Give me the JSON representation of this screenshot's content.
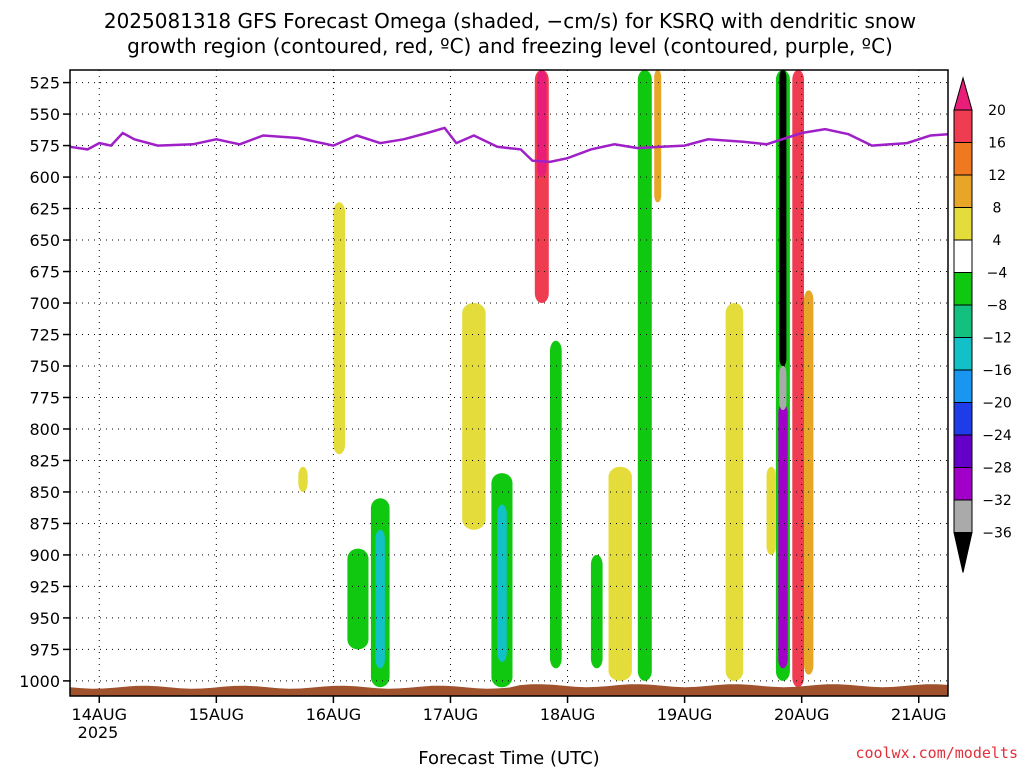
{
  "chart_data": {
    "type": "heatmap",
    "title_line1": "2025081318 GFS Forecast Omega (shaded, −cm/s) for KSRQ with dendritic snow",
    "title_line2": "growth region (contoured, red, ºC) and freezing level (contoured, purple, ºC)",
    "xlabel": "Forecast Time (UTC)",
    "x_ticks": [
      "14AUG",
      "15AUG",
      "16AUG",
      "17AUG",
      "18AUG",
      "19AUG",
      "20AUG",
      "21AUG"
    ],
    "x_year": "2025",
    "x_range_days": [
      -0.25,
      7.25
    ],
    "y_ticks": [
      525,
      550,
      575,
      600,
      625,
      650,
      675,
      700,
      725,
      750,
      775,
      800,
      825,
      850,
      875,
      900,
      925,
      950,
      975,
      1000
    ],
    "y_range_hpa": [
      515,
      1012
    ],
    "grid": true,
    "colorbar_labels": [
      "20",
      "16",
      "12",
      "8",
      "4",
      "−4",
      "−8",
      "−12",
      "−16",
      "−20",
      "−24",
      "−28",
      "−32",
      "−36"
    ],
    "colors": {
      "pos16_20": "#f03c50",
      "pos12_16": "#f07820",
      "pos8_12": "#e8a628",
      "pos4_8": "#e4dc3a",
      "neutral": "#ffffff",
      "neg4_8": "#11c811",
      "neg8_12": "#12c080",
      "neg12_16": "#12c0c8",
      "neg16_20": "#1896f0",
      "neg20_24": "#1e3ce8",
      "neg24_28": "#6400c8",
      "neg28_32": "#a000c8",
      "neg32_36": "#aaaaaa",
      "extreme_pos": "#e81e78",
      "extreme_neg": "#000000",
      "freezing_level": "#a020c8",
      "terrain": "#a0522d"
    },
    "freezing_level_hpa": [
      {
        "t": -0.25,
        "p": 576
      },
      {
        "t": -0.1,
        "p": 578
      },
      {
        "t": 0.0,
        "p": 573
      },
      {
        "t": 0.1,
        "p": 575
      },
      {
        "t": 0.2,
        "p": 565
      },
      {
        "t": 0.3,
        "p": 570
      },
      {
        "t": 0.5,
        "p": 575
      },
      {
        "t": 0.8,
        "p": 574
      },
      {
        "t": 1.0,
        "p": 570
      },
      {
        "t": 1.2,
        "p": 574
      },
      {
        "t": 1.4,
        "p": 567
      },
      {
        "t": 1.7,
        "p": 569
      },
      {
        "t": 2.0,
        "p": 575
      },
      {
        "t": 2.2,
        "p": 567
      },
      {
        "t": 2.4,
        "p": 573
      },
      {
        "t": 2.6,
        "p": 570
      },
      {
        "t": 2.8,
        "p": 565
      },
      {
        "t": 2.95,
        "p": 561
      },
      {
        "t": 3.05,
        "p": 573
      },
      {
        "t": 3.2,
        "p": 567
      },
      {
        "t": 3.4,
        "p": 576
      },
      {
        "t": 3.6,
        "p": 578
      },
      {
        "t": 3.7,
        "p": 587
      },
      {
        "t": 3.85,
        "p": 588
      },
      {
        "t": 4.0,
        "p": 585
      },
      {
        "t": 4.2,
        "p": 578
      },
      {
        "t": 4.4,
        "p": 574
      },
      {
        "t": 4.6,
        "p": 577
      },
      {
        "t": 4.8,
        "p": 576
      },
      {
        "t": 5.0,
        "p": 575
      },
      {
        "t": 5.2,
        "p": 570
      },
      {
        "t": 5.5,
        "p": 572
      },
      {
        "t": 5.7,
        "p": 574
      },
      {
        "t": 6.0,
        "p": 565
      },
      {
        "t": 6.2,
        "p": 562
      },
      {
        "t": 6.4,
        "p": 566
      },
      {
        "t": 6.6,
        "p": 575
      },
      {
        "t": 6.9,
        "p": 573
      },
      {
        "t": 7.1,
        "p": 567
      },
      {
        "t": 7.25,
        "p": 566
      }
    ],
    "omega_regions": [
      {
        "t0": 2.32,
        "t1": 2.48,
        "p0": 855,
        "p1": 1005,
        "c": "neg4_8"
      },
      {
        "t0": 2.36,
        "t1": 2.44,
        "p0": 880,
        "p1": 990,
        "c": "neg12_16"
      },
      {
        "t0": 2.12,
        "t1": 2.3,
        "p0": 895,
        "p1": 975,
        "c": "neg4_8"
      },
      {
        "t0": 3.35,
        "t1": 3.53,
        "p0": 835,
        "p1": 1005,
        "c": "neg4_8"
      },
      {
        "t0": 3.4,
        "t1": 3.48,
        "p0": 860,
        "p1": 985,
        "c": "neg12_16"
      },
      {
        "t0": 3.1,
        "t1": 3.3,
        "p0": 700,
        "p1": 880,
        "c": "pos4_8"
      },
      {
        "t0": 3.85,
        "t1": 3.95,
        "p0": 730,
        "p1": 990,
        "c": "neg4_8"
      },
      {
        "t0": 4.2,
        "t1": 4.3,
        "p0": 900,
        "p1": 990,
        "c": "neg4_8"
      },
      {
        "t0": 4.35,
        "t1": 4.55,
        "p0": 830,
        "p1": 1000,
        "c": "pos4_8"
      },
      {
        "t0": 4.6,
        "t1": 4.72,
        "p0": 515,
        "p1": 1000,
        "c": "neg4_8"
      },
      {
        "t0": 3.72,
        "t1": 3.84,
        "p0": 515,
        "p1": 700,
        "c": "pos16_20"
      },
      {
        "t0": 3.74,
        "t1": 3.82,
        "p0": 515,
        "p1": 600,
        "c": "extreme_pos"
      },
      {
        "t0": 4.74,
        "t1": 4.8,
        "p0": 515,
        "p1": 620,
        "c": "pos8_12"
      },
      {
        "t0": 5.35,
        "t1": 5.5,
        "p0": 700,
        "p1": 1000,
        "c": "pos4_8"
      },
      {
        "t0": 5.78,
        "t1": 5.9,
        "p0": 515,
        "p1": 1000,
        "c": "neg4_8"
      },
      {
        "t0": 5.8,
        "t1": 5.88,
        "p0": 780,
        "p1": 990,
        "c": "neg28_32"
      },
      {
        "t0": 5.81,
        "t1": 5.87,
        "p0": 515,
        "p1": 750,
        "c": "extreme_neg"
      },
      {
        "t0": 5.81,
        "t1": 5.87,
        "p0": 750,
        "p1": 785,
        "c": "neg32_36"
      },
      {
        "t0": 5.92,
        "t1": 6.02,
        "p0": 515,
        "p1": 1005,
        "c": "pos16_20"
      },
      {
        "t0": 6.02,
        "t1": 6.1,
        "p0": 690,
        "p1": 995,
        "c": "pos8_12"
      },
      {
        "t0": 5.7,
        "t1": 5.78,
        "p0": 830,
        "p1": 900,
        "c": "pos4_8"
      },
      {
        "t0": 2.0,
        "t1": 2.1,
        "p0": 620,
        "p1": 820,
        "c": "pos4_8"
      },
      {
        "t0": 1.7,
        "t1": 1.78,
        "p0": 830,
        "p1": 850,
        "c": "pos4_8"
      }
    ]
  }
}
